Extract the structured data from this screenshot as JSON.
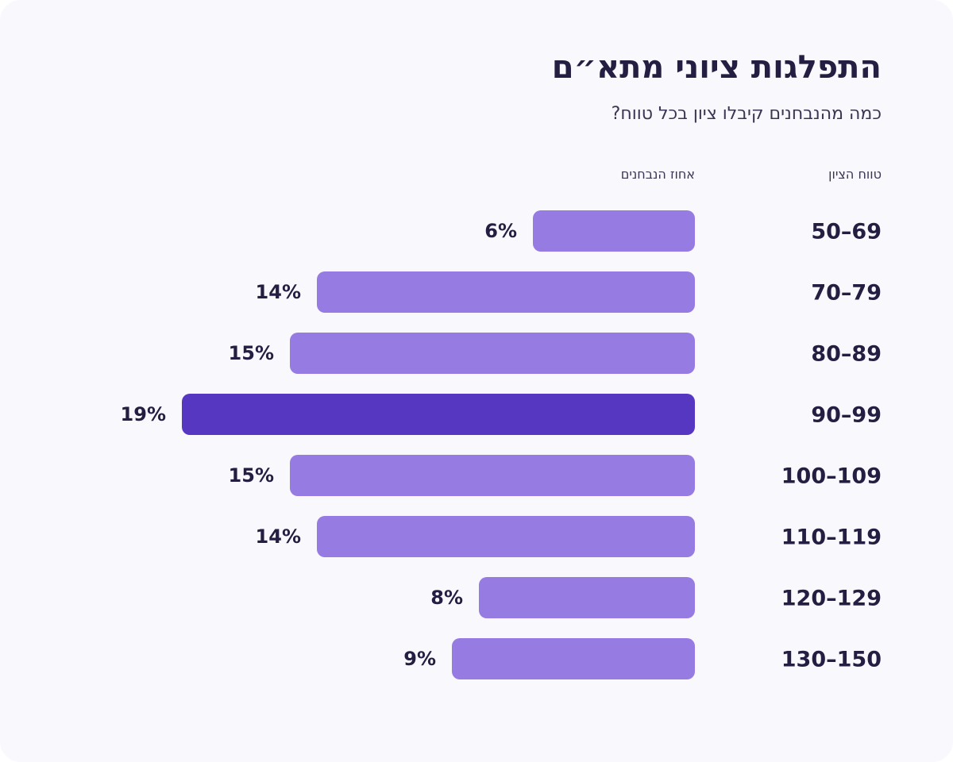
{
  "chart_data": {
    "type": "bar",
    "orientation": "horizontal",
    "direction": "rtl",
    "title": "התפלגות ציוני מתא״ם",
    "subtitle": "כמה מהנבחנים קיבלו ציון בכל טווח?",
    "category_header": "טווח הציון",
    "value_header": "אחוז הנבחנים",
    "categories": [
      "50–69",
      "70–79",
      "80–89",
      "90–99",
      "100–109",
      "110–119",
      "120–129",
      "130–150"
    ],
    "values": [
      6,
      14,
      15,
      19,
      15,
      14,
      8,
      9
    ],
    "value_labels": [
      "6%",
      "14%",
      "15%",
      "19%",
      "15%",
      "14%",
      "8%",
      "9%"
    ],
    "unit": "%",
    "highlight_index": 3,
    "colors": {
      "bar": "#967be3",
      "highlight": "#5637c2",
      "text": "#241e42",
      "background": "#f9f8fd"
    },
    "grid": false,
    "legend": "none"
  }
}
